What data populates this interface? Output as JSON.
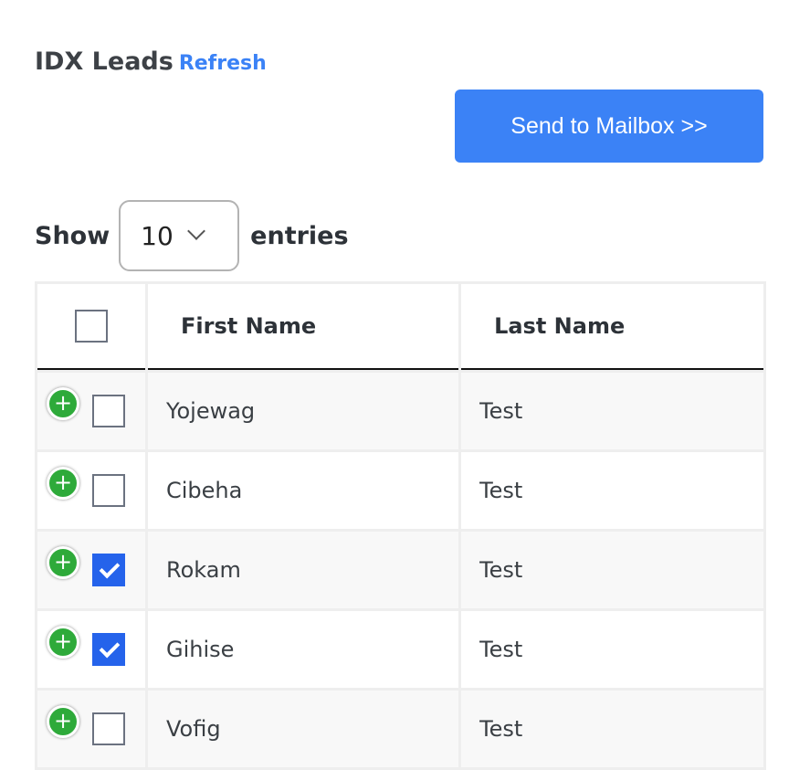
{
  "header": {
    "title": "IDX Leads",
    "refresh_label": "Refresh"
  },
  "toolbar": {
    "send_label": "Send to Mailbox >>"
  },
  "length": {
    "show_label": "Show",
    "value": "10",
    "entries_label": "entries"
  },
  "table": {
    "columns": [
      "First Name",
      "Last Name"
    ],
    "rows": [
      {
        "first": "Yojewag",
        "last": "Test",
        "checked": false
      },
      {
        "first": "Cibeha",
        "last": "Test",
        "checked": false
      },
      {
        "first": "Rokam",
        "last": "Test",
        "checked": true
      },
      {
        "first": "Gihise",
        "last": "Test",
        "checked": true
      },
      {
        "first": "Vofig",
        "last": "Test",
        "checked": false
      }
    ]
  },
  "colors": {
    "accent": "#3b82f6",
    "checkbox_checked": "#2563eb",
    "expand_icon": "#2eaa3a"
  }
}
